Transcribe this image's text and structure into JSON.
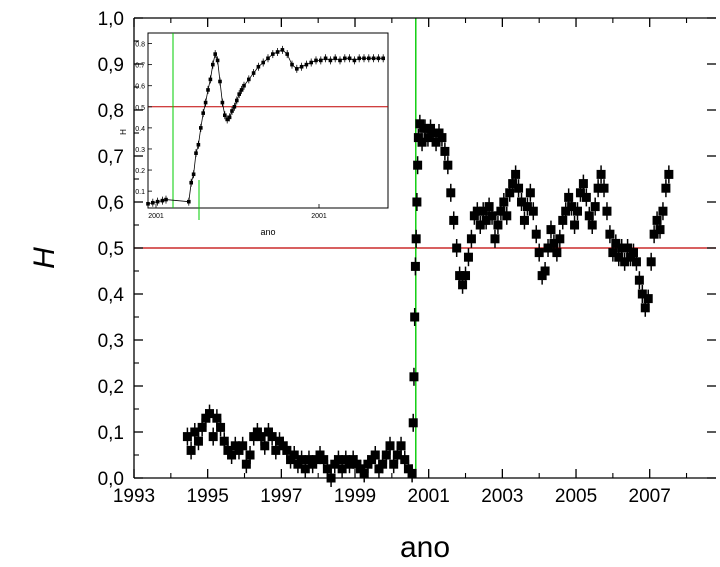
{
  "chart_data": {
    "type": "scatter",
    "main": {
      "xlabel": "ano",
      "ylabel": "H",
      "xlim": [
        1993,
        2008.8
      ],
      "ylim": [
        0,
        1.0
      ],
      "xticks": [
        1993,
        1995,
        1997,
        1999,
        2001,
        2003,
        2005,
        2007
      ],
      "xtick_labels": [
        "1993",
        "1995",
        "1997",
        "1999",
        "2001",
        "2003",
        "2005",
        "2007"
      ],
      "yticks": [
        0,
        0.1,
        0.2,
        0.3,
        0.4,
        0.5,
        0.6,
        0.7,
        0.8,
        0.9,
        1.0
      ],
      "ytick_labels": [
        "0,0",
        "0,1",
        "0,2",
        "0,3",
        "0,4",
        "0,5",
        "0,6",
        "0,7",
        "0,8",
        "0,9",
        "1,0"
      ],
      "reference_line": {
        "y": 0.5,
        "color": "#c00000"
      },
      "vertical_line": {
        "x": 2000.65,
        "color": "#00cc00"
      },
      "series_color": "#000000",
      "points": [
        [
          1994.45,
          0.09
        ],
        [
          1994.55,
          0.06
        ],
        [
          1994.65,
          0.1
        ],
        [
          1994.75,
          0.08
        ],
        [
          1994.85,
          0.11
        ],
        [
          1994.95,
          0.13
        ],
        [
          1995.05,
          0.14
        ],
        [
          1995.15,
          0.09
        ],
        [
          1995.25,
          0.13
        ],
        [
          1995.35,
          0.11
        ],
        [
          1995.45,
          0.08
        ],
        [
          1995.55,
          0.06
        ],
        [
          1995.65,
          0.05
        ],
        [
          1995.75,
          0.07
        ],
        [
          1995.85,
          0.06
        ],
        [
          1995.95,
          0.07
        ],
        [
          1996.05,
          0.03
        ],
        [
          1996.15,
          0.05
        ],
        [
          1996.25,
          0.09
        ],
        [
          1996.35,
          0.1
        ],
        [
          1996.45,
          0.09
        ],
        [
          1996.55,
          0.07
        ],
        [
          1996.65,
          0.1
        ],
        [
          1996.75,
          0.09
        ],
        [
          1996.85,
          0.06
        ],
        [
          1996.95,
          0.08
        ],
        [
          1997.05,
          0.07
        ],
        [
          1997.15,
          0.06
        ],
        [
          1997.25,
          0.04
        ],
        [
          1997.35,
          0.05
        ],
        [
          1997.45,
          0.03
        ],
        [
          1997.55,
          0.04
        ],
        [
          1997.65,
          0.02
        ],
        [
          1997.75,
          0.04
        ],
        [
          1997.85,
          0.03
        ],
        [
          1997.95,
          0.04
        ],
        [
          1998.05,
          0.05
        ],
        [
          1998.15,
          0.04
        ],
        [
          1998.25,
          0.02
        ],
        [
          1998.35,
          0.0
        ],
        [
          1998.45,
          0.03
        ],
        [
          1998.55,
          0.04
        ],
        [
          1998.65,
          0.02
        ],
        [
          1998.75,
          0.04
        ],
        [
          1998.85,
          0.03
        ],
        [
          1998.95,
          0.04
        ],
        [
          1999.05,
          0.03
        ],
        [
          1999.15,
          0.02
        ],
        [
          1999.25,
          0.01
        ],
        [
          1999.35,
          0.03
        ],
        [
          1999.45,
          0.04
        ],
        [
          1999.55,
          0.05
        ],
        [
          1999.65,
          0.02
        ],
        [
          1999.75,
          0.03
        ],
        [
          1999.85,
          0.05
        ],
        [
          1999.95,
          0.07
        ],
        [
          2000.05,
          0.03
        ],
        [
          2000.15,
          0.05
        ],
        [
          2000.25,
          0.07
        ],
        [
          2000.35,
          0.04
        ],
        [
          2000.45,
          0.02
        ],
        [
          2000.55,
          0.01
        ],
        [
          2000.58,
          0.12
        ],
        [
          2000.6,
          0.22
        ],
        [
          2000.62,
          0.35
        ],
        [
          2000.64,
          0.46
        ],
        [
          2000.66,
          0.52
        ],
        [
          2000.68,
          0.6
        ],
        [
          2000.7,
          0.68
        ],
        [
          2000.72,
          0.74
        ],
        [
          2000.76,
          0.77
        ],
        [
          2000.82,
          0.73
        ],
        [
          2000.9,
          0.76
        ],
        [
          2000.98,
          0.74
        ],
        [
          2001.05,
          0.76
        ],
        [
          2001.12,
          0.75
        ],
        [
          2001.2,
          0.73
        ],
        [
          2001.28,
          0.75
        ],
        [
          2001.36,
          0.74
        ],
        [
          2001.44,
          0.71
        ],
        [
          2001.52,
          0.68
        ],
        [
          2001.6,
          0.62
        ],
        [
          2001.68,
          0.56
        ],
        [
          2001.76,
          0.5
        ],
        [
          2001.84,
          0.44
        ],
        [
          2001.92,
          0.42
        ],
        [
          2002.0,
          0.44
        ],
        [
          2002.08,
          0.48
        ],
        [
          2002.16,
          0.52
        ],
        [
          2002.24,
          0.57
        ],
        [
          2002.32,
          0.58
        ],
        [
          2002.4,
          0.55
        ],
        [
          2002.48,
          0.58
        ],
        [
          2002.56,
          0.56
        ],
        [
          2002.64,
          0.59
        ],
        [
          2002.72,
          0.57
        ],
        [
          2002.8,
          0.52
        ],
        [
          2002.88,
          0.55
        ],
        [
          2002.96,
          0.58
        ],
        [
          2003.04,
          0.6
        ],
        [
          2003.12,
          0.57
        ],
        [
          2003.2,
          0.62
        ],
        [
          2003.28,
          0.64
        ],
        [
          2003.36,
          0.66
        ],
        [
          2003.44,
          0.63
        ],
        [
          2003.52,
          0.6
        ],
        [
          2003.6,
          0.56
        ],
        [
          2003.68,
          0.59
        ],
        [
          2003.76,
          0.62
        ],
        [
          2003.84,
          0.58
        ],
        [
          2003.92,
          0.53
        ],
        [
          2004.0,
          0.49
        ],
        [
          2004.08,
          0.44
        ],
        [
          2004.16,
          0.45
        ],
        [
          2004.24,
          0.5
        ],
        [
          2004.32,
          0.54
        ],
        [
          2004.4,
          0.51
        ],
        [
          2004.48,
          0.49
        ],
        [
          2004.56,
          0.52
        ],
        [
          2004.64,
          0.56
        ],
        [
          2004.72,
          0.58
        ],
        [
          2004.8,
          0.61
        ],
        [
          2004.88,
          0.59
        ],
        [
          2004.96,
          0.55
        ],
        [
          2005.04,
          0.58
        ],
        [
          2005.12,
          0.62
        ],
        [
          2005.2,
          0.64
        ],
        [
          2005.28,
          0.61
        ],
        [
          2005.36,
          0.57
        ],
        [
          2005.44,
          0.55
        ],
        [
          2005.52,
          0.59
        ],
        [
          2005.6,
          0.63
        ],
        [
          2005.68,
          0.66
        ],
        [
          2005.76,
          0.63
        ],
        [
          2005.84,
          0.58
        ],
        [
          2005.92,
          0.53
        ],
        [
          2006.0,
          0.49
        ],
        [
          2006.08,
          0.51
        ],
        [
          2006.16,
          0.48
        ],
        [
          2006.24,
          0.5
        ],
        [
          2006.32,
          0.47
        ],
        [
          2006.4,
          0.5
        ],
        [
          2006.48,
          0.48
        ],
        [
          2006.56,
          0.49
        ],
        [
          2006.64,
          0.47
        ],
        [
          2006.72,
          0.43
        ],
        [
          2006.8,
          0.4
        ],
        [
          2006.88,
          0.37
        ],
        [
          2006.96,
          0.39
        ],
        [
          2007.04,
          0.47
        ],
        [
          2007.12,
          0.53
        ],
        [
          2007.2,
          0.56
        ],
        [
          2007.28,
          0.54
        ],
        [
          2007.36,
          0.58
        ],
        [
          2007.44,
          0.63
        ],
        [
          2007.52,
          0.66
        ]
      ]
    },
    "inset": {
      "xlabel": "ano",
      "ylabel": "H",
      "xtick_labels": [
        "2001",
        "2001"
      ],
      "ytick_labels": [
        "0.1",
        "0.2",
        "0.3",
        "0.4",
        "0.5",
        "0.6",
        "0.7",
        "0.8"
      ],
      "ylim": [
        0.02,
        0.85
      ],
      "reference_value": 0.5,
      "series_points": [
        [
          0.0,
          0.04
        ],
        [
          0.02,
          0.045
        ],
        [
          0.04,
          0.05
        ],
        [
          0.06,
          0.055
        ],
        [
          0.075,
          0.06
        ],
        [
          0.17,
          0.05
        ],
        [
          0.18,
          0.14
        ],
        [
          0.19,
          0.18
        ],
        [
          0.2,
          0.28
        ],
        [
          0.21,
          0.32
        ],
        [
          0.22,
          0.4
        ],
        [
          0.23,
          0.47
        ],
        [
          0.24,
          0.52
        ],
        [
          0.25,
          0.58
        ],
        [
          0.26,
          0.63
        ],
        [
          0.27,
          0.7
        ],
        [
          0.28,
          0.75
        ],
        [
          0.29,
          0.72
        ],
        [
          0.3,
          0.62
        ],
        [
          0.31,
          0.52
        ],
        [
          0.32,
          0.46
        ],
        [
          0.33,
          0.44
        ],
        [
          0.34,
          0.45
        ],
        [
          0.35,
          0.48
        ],
        [
          0.36,
          0.5
        ],
        [
          0.37,
          0.53
        ],
        [
          0.38,
          0.56
        ],
        [
          0.39,
          0.58
        ],
        [
          0.4,
          0.6
        ],
        [
          0.42,
          0.63
        ],
        [
          0.44,
          0.66
        ],
        [
          0.46,
          0.69
        ],
        [
          0.48,
          0.71
        ],
        [
          0.5,
          0.73
        ],
        [
          0.52,
          0.75
        ],
        [
          0.54,
          0.76
        ],
        [
          0.56,
          0.77
        ],
        [
          0.58,
          0.75
        ],
        [
          0.6,
          0.7
        ],
        [
          0.62,
          0.68
        ],
        [
          0.64,
          0.69
        ],
        [
          0.66,
          0.7
        ],
        [
          0.68,
          0.71
        ],
        [
          0.7,
          0.72
        ],
        [
          0.72,
          0.72
        ],
        [
          0.74,
          0.73
        ],
        [
          0.76,
          0.72
        ],
        [
          0.78,
          0.73
        ],
        [
          0.8,
          0.72
        ],
        [
          0.82,
          0.73
        ],
        [
          0.84,
          0.73
        ],
        [
          0.86,
          0.72
        ],
        [
          0.88,
          0.73
        ],
        [
          0.9,
          0.73
        ],
        [
          0.92,
          0.73
        ],
        [
          0.94,
          0.73
        ],
        [
          0.96,
          0.73
        ],
        [
          0.98,
          0.73
        ]
      ]
    }
  }
}
